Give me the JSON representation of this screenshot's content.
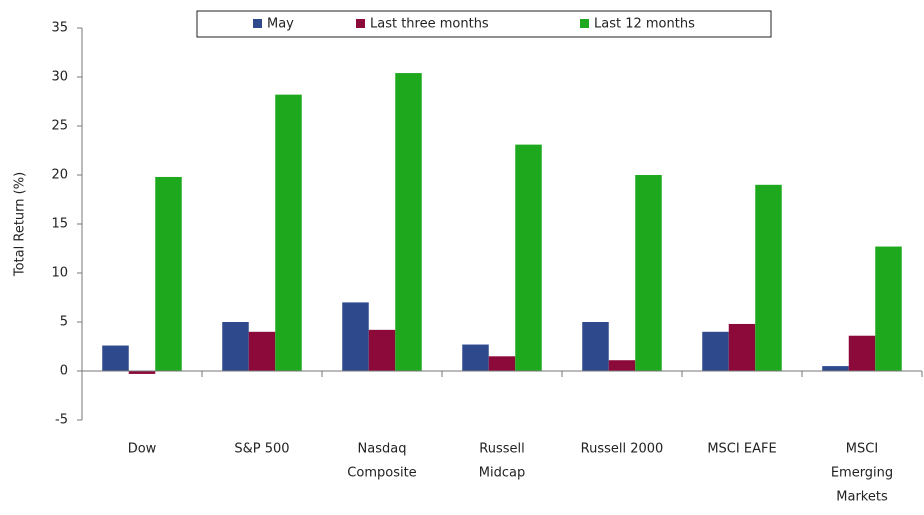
{
  "chart_data": {
    "type": "bar",
    "y_label": "Total Return (%)",
    "categories": [
      [
        "Dow"
      ],
      [
        "S&P 500"
      ],
      [
        "Nasdaq",
        "Composite"
      ],
      [
        "Russell",
        "Midcap"
      ],
      [
        "Russell 2000"
      ],
      [
        "MSCI EAFE"
      ],
      [
        "MSCI",
        "Emerging",
        "Markets"
      ]
    ],
    "series": [
      {
        "name": "May",
        "color": "#2e4a8c",
        "values": [
          2.6,
          5.0,
          7.0,
          2.7,
          5.0,
          4.0,
          0.5
        ]
      },
      {
        "name": "Last three months",
        "color": "#8b0a3a",
        "values": [
          -0.3,
          4.0,
          4.2,
          1.5,
          1.1,
          4.8,
          3.6
        ]
      },
      {
        "name": "Last 12 months",
        "color": "#1ea81e",
        "values": [
          19.8,
          28.2,
          30.4,
          23.1,
          20.0,
          19.0,
          12.7
        ]
      }
    ],
    "ylim": [
      -5,
      35
    ],
    "yticks": [
      -5,
      0,
      5,
      10,
      15,
      20,
      25,
      30,
      35
    ],
    "grid": false,
    "legend": "top"
  }
}
